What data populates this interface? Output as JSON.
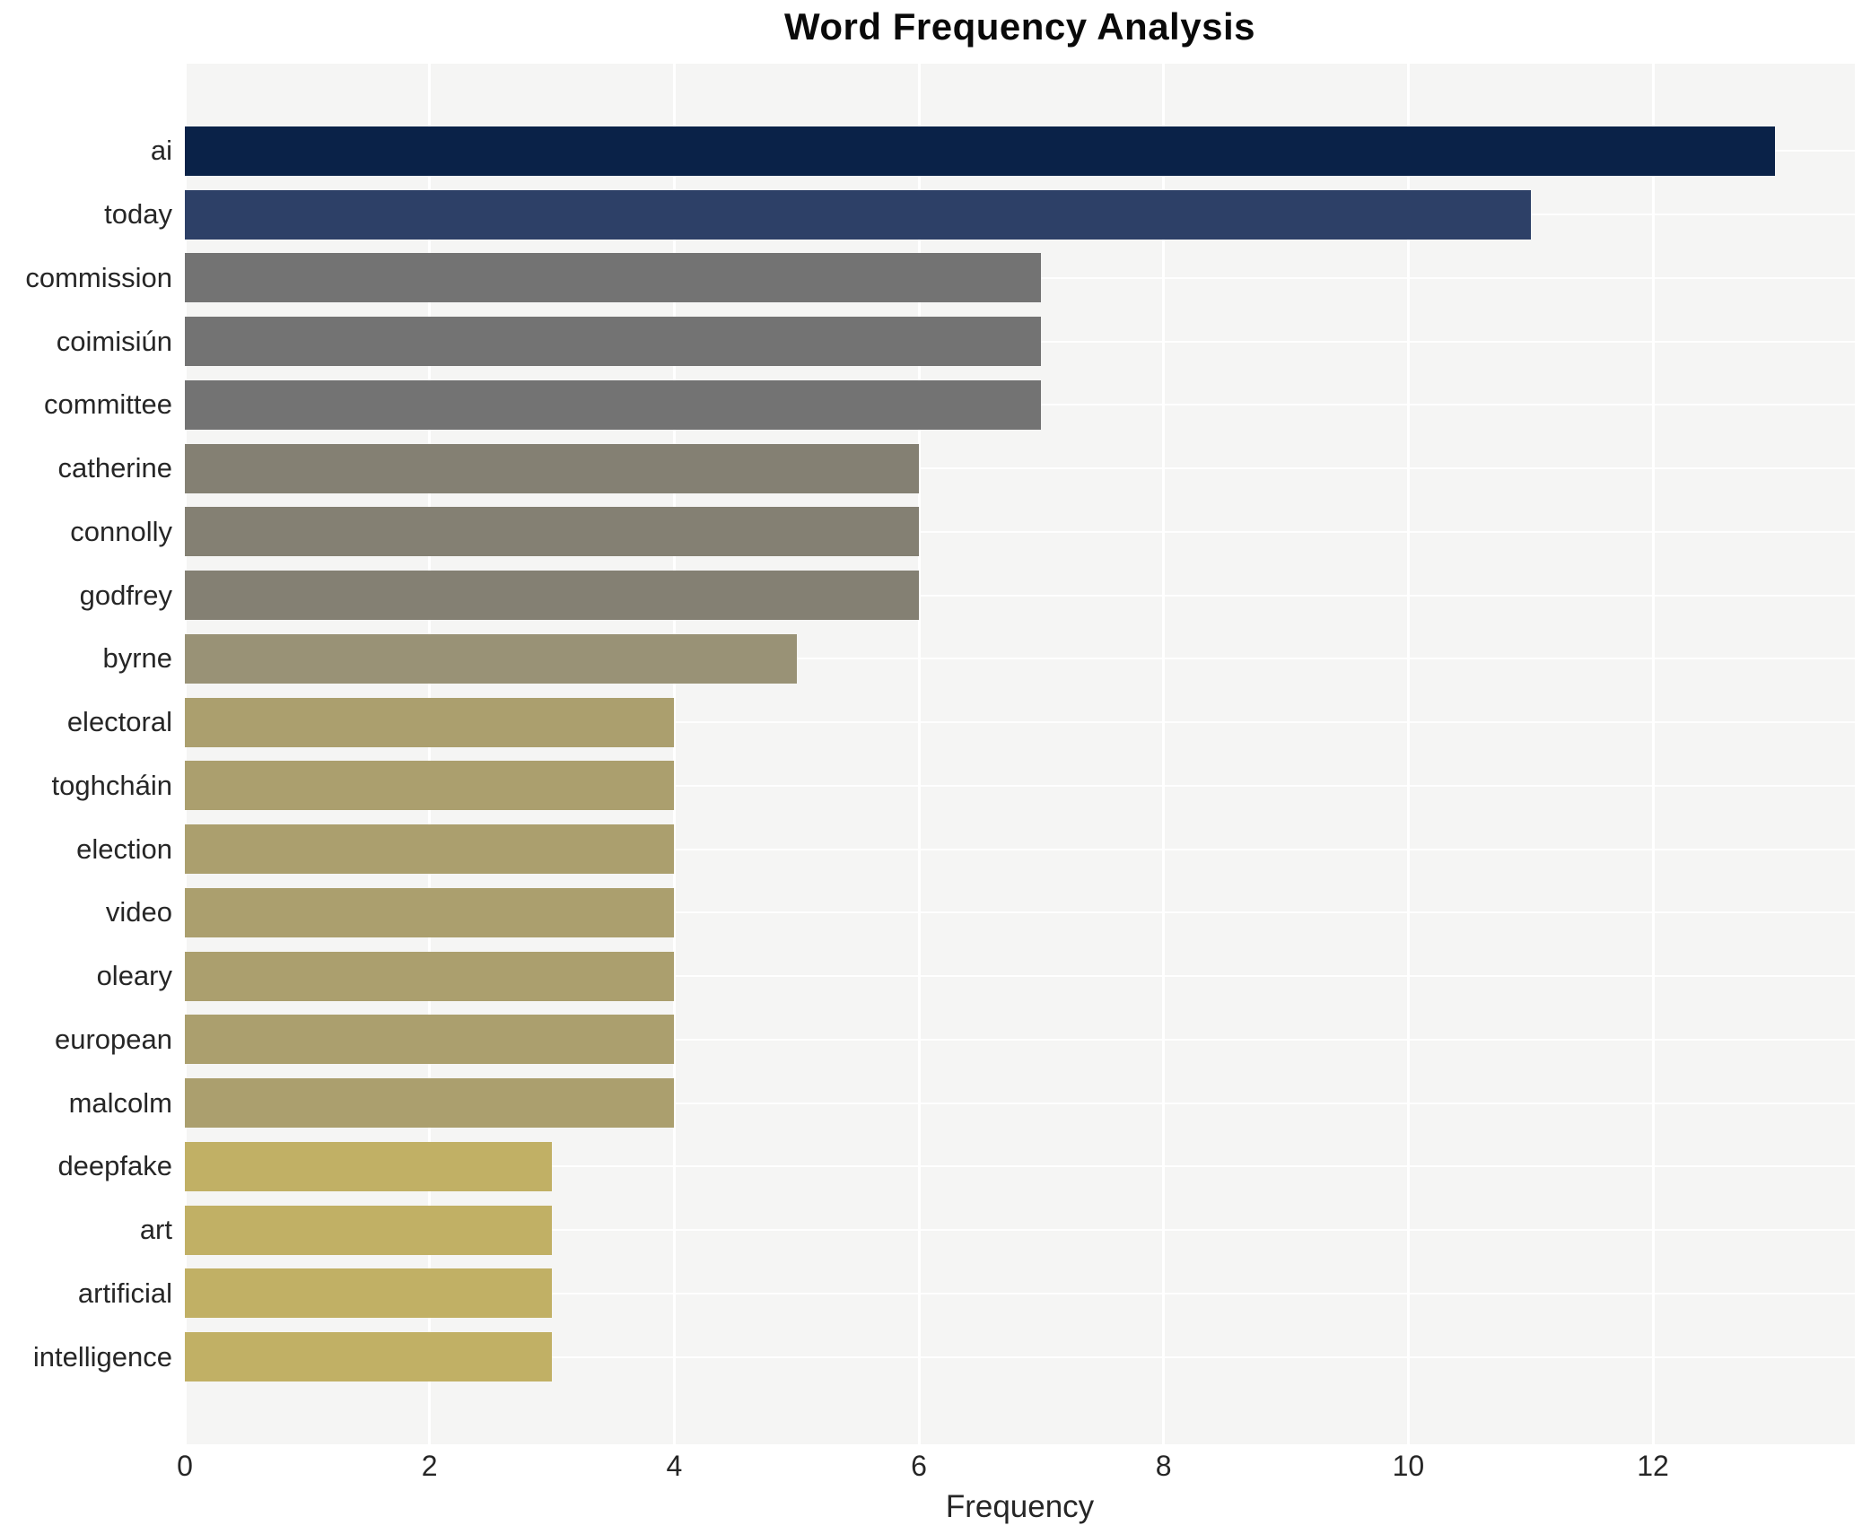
{
  "chart_data": {
    "type": "bar",
    "orientation": "horizontal",
    "title": "Word Frequency Analysis",
    "xlabel": "Frequency",
    "ylabel": "",
    "categories": [
      "ai",
      "today",
      "commission",
      "coimisiún",
      "committee",
      "catherine",
      "connolly",
      "godfrey",
      "byrne",
      "electoral",
      "toghcháin",
      "election",
      "video",
      "oleary",
      "european",
      "malcolm",
      "deepfake",
      "art",
      "artificial",
      "intelligence"
    ],
    "values": [
      13,
      11,
      7,
      7,
      7,
      6,
      6,
      6,
      5,
      4,
      4,
      4,
      4,
      4,
      4,
      4,
      3,
      3,
      3,
      3
    ],
    "bar_colors": [
      "#0a2248",
      "#2d4067",
      "#737373",
      "#737373",
      "#737373",
      "#848073",
      "#848073",
      "#848073",
      "#999276",
      "#ab9f6e",
      "#ab9f6e",
      "#ab9f6e",
      "#ab9f6e",
      "#ab9f6e",
      "#ab9f6e",
      "#ab9f6e",
      "#c1b065",
      "#c1b065",
      "#c1b065",
      "#c1b065"
    ],
    "x_ticks": [
      0,
      2,
      4,
      6,
      8,
      10,
      12
    ],
    "xlim": [
      0,
      13.65
    ],
    "grid": true,
    "legend_position": "none",
    "colors": {
      "figure_bg": "#ffffff",
      "plot_bg": "#f5f5f4",
      "grid_line": "#ffffff",
      "text": "#262626",
      "title_text": "#0a0a0a"
    }
  }
}
